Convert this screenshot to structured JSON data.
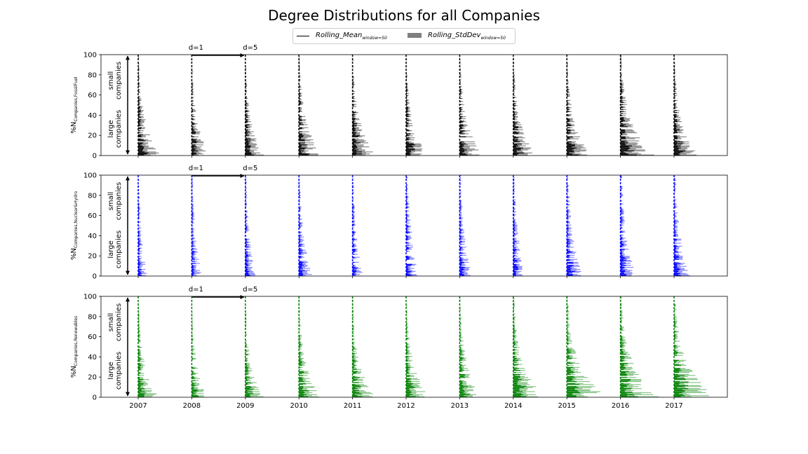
{
  "figure": {
    "title": "Degree Distributions for all Companies"
  },
  "legend": {
    "mean_label": "Rolling_Mean",
    "mean_sub": "window=50",
    "std_label": "Rolling_StdDev",
    "std_sub": "window=50",
    "std_color": "#808080",
    "mean_color": "#000000"
  },
  "annotations": {
    "d1": "d=1",
    "d5": "d=5",
    "small_companies": [
      "small",
      "companies"
    ],
    "large_companies": [
      "large",
      "companies"
    ]
  },
  "chart_data": [
    {
      "type": "bar",
      "orientation": "horizontal",
      "ylabel": "%N",
      "ylabel_sub": "Companies,FossilFuel",
      "color": "#000000",
      "ylim": [
        0,
        100
      ],
      "yticks": [
        0,
        20,
        40,
        60,
        80,
        100
      ],
      "categories": [
        "2007",
        "2008",
        "2009",
        "2010",
        "2011",
        "2012",
        "2013",
        "2014",
        "2015",
        "2016",
        "2017"
      ],
      "bar_extent_years": [
        0.45,
        0.35,
        0.35,
        0.45,
        0.45,
        0.4,
        0.45,
        0.45,
        0.45,
        0.65,
        0.45
      ],
      "decay_percent": 30
    },
    {
      "type": "bar",
      "orientation": "horizontal",
      "ylabel": "%N",
      "ylabel_sub": "Companies,Nuclear&Hydro",
      "color": "#0000ff",
      "ylim": [
        0,
        100
      ],
      "yticks": [
        0,
        20,
        40,
        60,
        80,
        100
      ],
      "categories": [
        "2007",
        "2008",
        "2009",
        "2010",
        "2011",
        "2012",
        "2013",
        "2014",
        "2015",
        "2016",
        "2017"
      ],
      "bar_extent_years": [
        0.18,
        0.2,
        0.2,
        0.25,
        0.2,
        0.3,
        0.25,
        0.25,
        0.3,
        0.3,
        0.3
      ],
      "decay_percent": 45
    },
    {
      "type": "bar",
      "orientation": "horizontal",
      "ylabel": "%N",
      "ylabel_sub": "Companies,Renewables",
      "color": "#008000",
      "ylim": [
        0,
        100
      ],
      "yticks": [
        0,
        20,
        40,
        60,
        80,
        100
      ],
      "categories": [
        "2007",
        "2008",
        "2009",
        "2010",
        "2011",
        "2012",
        "2013",
        "2014",
        "2015",
        "2016",
        "2017"
      ],
      "bar_extent_years": [
        0.4,
        0.3,
        0.35,
        0.45,
        0.45,
        0.45,
        0.45,
        0.6,
        0.75,
        0.75,
        0.8
      ],
      "decay_percent": 30
    }
  ]
}
